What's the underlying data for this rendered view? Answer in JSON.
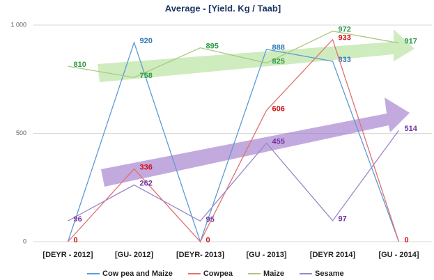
{
  "chart_data": {
    "type": "line",
    "title": "Average - [Yield. Kg / Taab]",
    "categories": [
      "[DEYR - 2012]",
      "[GU- 2012]",
      "[DEYR- 2013]",
      "[GU - 2013]",
      "[DEYR 2014]",
      "[GU - 2014]"
    ],
    "series": [
      {
        "name": "Cow pea and Maize",
        "color": "#5b9bd5",
        "label_color": "#2e75b6",
        "values": [
          0,
          920,
          0,
          888,
          833,
          0
        ],
        "value_labels": [
          null,
          "920",
          null,
          "888",
          "833",
          null
        ]
      },
      {
        "name": "Cowpea",
        "color": "#e07070",
        "label_color": "#d01010",
        "values": [
          0,
          336,
          0,
          606,
          933,
          0
        ]
      },
      {
        "name": "Maize",
        "color": "#a9c97e",
        "label_color": "#2e9a48",
        "values": [
          810,
          758,
          895,
          825,
          972,
          917
        ]
      },
      {
        "name": "Sesame",
        "color": "#9a86c8",
        "label_color": "#7030a0",
        "values": [
          96,
          262,
          95,
          455,
          97,
          514
        ]
      }
    ],
    "ylim": [
      0,
      1000
    ],
    "yticks": [
      0,
      500,
      {
        "value": 1000,
        "label": "1 000"
      }
    ],
    "grid": true,
    "legend": "bottom"
  }
}
